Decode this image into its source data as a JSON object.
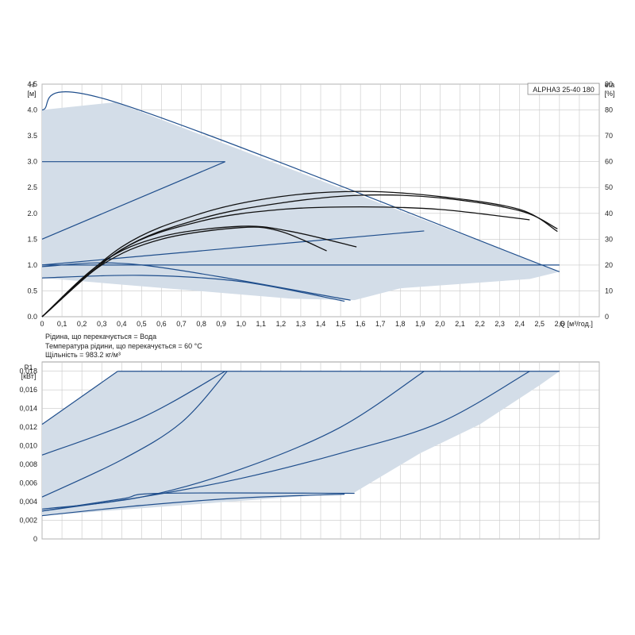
{
  "chart_data": [
    {
      "type": "line",
      "panel": "head",
      "model_label": "ALPHA3 25-40 180",
      "ylabel_name": "H",
      "ylabel_unit": "[м]",
      "y2label_name": "eta",
      "y2label_unit": "[%]",
      "xlabel": "Q [м³/год.]",
      "xlim": [
        0,
        2.8
      ],
      "ylim": [
        0,
        4.5
      ],
      "y2lim": [
        0,
        90
      ],
      "x_ticks": [
        0,
        0.1,
        0.2,
        0.3,
        0.4,
        0.5,
        0.6,
        0.7,
        0.8,
        0.9,
        1.0,
        1.1,
        1.2,
        1.3,
        1.4,
        1.5,
        1.6,
        1.7,
        1.8,
        1.9,
        2.0,
        2.1,
        2.2,
        2.3,
        2.4,
        2.5,
        2.6
      ],
      "x_tick_labels": [
        "0",
        "0,1",
        "0,2",
        "0,3",
        "0,4",
        "0,5",
        "0,6",
        "0,7",
        "0,8",
        "0,9",
        "1,0",
        "1,1",
        "1,2",
        "1,3",
        "1,4",
        "1,5",
        "1,6",
        "1,7",
        "1,8",
        "1,9",
        "2,0",
        "2,1",
        "2,2",
        "2,3",
        "2,4",
        "2,5",
        "2,6"
      ],
      "y_ticks": [
        0,
        0.5,
        1.0,
        1.5,
        2.0,
        2.5,
        3.0,
        3.5,
        4.0,
        4.5
      ],
      "y_tick_labels": [
        "0.0",
        "0.5",
        "1.0",
        "1.5",
        "2.0",
        "2.5",
        "3.0",
        "3.5",
        "4.0",
        "4.5"
      ],
      "y2_ticks": [
        0,
        10,
        20,
        30,
        40,
        50,
        60,
        70,
        80,
        90
      ],
      "y2_tick_labels": [
        "0",
        "10",
        "20",
        "30",
        "40",
        "50",
        "60",
        "70",
        "80",
        "90"
      ],
      "grid": true,
      "colors": {
        "area": "#d3dde8",
        "curve": "#1f4e8c",
        "eta": "#111111",
        "grid": "#c8c8c8"
      },
      "operating_area": [
        [
          0,
          4.0
        ],
        [
          0.37,
          4.15
        ],
        [
          2.6,
          0.87
        ],
        [
          2.45,
          0.73
        ],
        [
          1.8,
          0.55
        ],
        [
          1.57,
          0.32
        ],
        [
          1.25,
          0.35
        ],
        [
          0,
          0.75
        ]
      ],
      "series": [
        {
          "values": [
            [
              0,
              4.0
            ],
            [
              0.37,
              4.15
            ],
            [
              2.6,
              0.87
            ]
          ]
        },
        {
          "values": [
            [
              0,
              3.0
            ],
            [
              0.92,
              3.0
            ]
          ]
        },
        {
          "values": [
            [
              0,
              1.5
            ],
            [
              0.92,
              3.0
            ]
          ]
        },
        {
          "values": [
            [
              0,
              1.0
            ],
            [
              1.92,
              1.66
            ]
          ]
        },
        {
          "values": [
            [
              0,
              1.0
            ],
            [
              2.6,
              1.0
            ]
          ]
        },
        {
          "values": [
            [
              0,
              0.75
            ],
            [
              0.5,
              0.8
            ],
            [
              1.0,
              0.68
            ],
            [
              1.52,
              0.3
            ]
          ]
        },
        {
          "values": [
            [
              0,
              0.97
            ],
            [
              0.5,
              1.0
            ],
            [
              1.55,
              0.32
            ]
          ]
        }
      ],
      "efficiency_series": [
        {
          "values": [
            [
              0,
              0
            ],
            [
              0.3,
              20
            ],
            [
              0.6,
              30
            ],
            [
              1.0,
              34.5
            ],
            [
              1.2,
              33
            ],
            [
              1.43,
              25.5
            ]
          ]
        },
        {
          "values": [
            [
              0,
              0
            ],
            [
              0.3,
              21
            ],
            [
              0.6,
              31
            ],
            [
              1.0,
              35
            ],
            [
              1.25,
              33
            ],
            [
              1.58,
              27
            ]
          ]
        },
        {
          "values": [
            [
              0,
              0
            ],
            [
              0.4,
              26
            ],
            [
              0.8,
              37
            ],
            [
              1.2,
              41.5
            ],
            [
              1.6,
              42.5
            ],
            [
              2.0,
              41.5
            ],
            [
              2.45,
              37.5
            ]
          ]
        },
        {
          "values": [
            [
              0,
              0
            ],
            [
              0.4,
              26
            ],
            [
              0.8,
              38
            ],
            [
              1.2,
              44
            ],
            [
              1.6,
              47
            ],
            [
              2.0,
              46
            ],
            [
              2.4,
              41
            ],
            [
              2.59,
              34
            ]
          ]
        },
        {
          "values": [
            [
              0,
              0
            ],
            [
              0.4,
              27
            ],
            [
              0.8,
              40
            ],
            [
              1.2,
              46.5
            ],
            [
              1.6,
              48.5
            ],
            [
              2.0,
              46.5
            ],
            [
              2.4,
              41.5
            ],
            [
              2.59,
              33
            ]
          ]
        }
      ],
      "notes": [
        "Рідина, що перекачується = Вода",
        "Температура рідини, що перекачується = 60 °C",
        "Щільність = 983.2 кг/м³"
      ]
    },
    {
      "type": "line",
      "panel": "power",
      "ylabel_name": "P1",
      "ylabel_unit": "[кВт]",
      "xlim": [
        0,
        2.8
      ],
      "ylim": [
        0,
        0.019
      ],
      "y_ticks": [
        0,
        0.002,
        0.004,
        0.006,
        0.008,
        0.01,
        0.012,
        0.014,
        0.016,
        0.018
      ],
      "y_tick_labels": [
        "0",
        "0,002",
        "0,004",
        "0,006",
        "0,008",
        "0,010",
        "0,012",
        "0,014",
        "0,016",
        "0,018"
      ],
      "grid": true,
      "colors": {
        "area": "#d3dde8",
        "curve": "#1f4e8c",
        "grid": "#c8c8c8"
      },
      "operating_area": [
        [
          0,
          0.0123
        ],
        [
          0.38,
          0.018
        ],
        [
          2.6,
          0.018
        ],
        [
          2.5,
          0.0165
        ],
        [
          2.2,
          0.0123
        ],
        [
          1.9,
          0.0092
        ],
        [
          1.57,
          0.005
        ],
        [
          0,
          0.0025
        ]
      ],
      "series": [
        {
          "values": [
            [
              0.38,
              0.018
            ],
            [
              2.6,
              0.018
            ]
          ]
        },
        {
          "values": [
            [
              0,
              0.0123
            ],
            [
              0.38,
              0.018
            ]
          ]
        },
        {
          "values": [
            [
              0,
              0.009
            ],
            [
              0.5,
              0.013
            ],
            [
              0.92,
              0.018
            ]
          ]
        },
        {
          "values": [
            [
              0,
              0.0045
            ],
            [
              0.4,
              0.0085
            ],
            [
              0.7,
              0.0125
            ],
            [
              0.93,
              0.018
            ]
          ]
        },
        {
          "values": [
            [
              0,
              0.0032
            ],
            [
              0.5,
              0.0045
            ],
            [
              1.0,
              0.0075
            ],
            [
              1.5,
              0.012
            ],
            [
              1.92,
              0.018
            ]
          ]
        },
        {
          "values": [
            [
              0,
              0.003
            ],
            [
              0.5,
              0.0045
            ],
            [
              1.0,
              0.0065
            ],
            [
              1.5,
              0.0092
            ],
            [
              2.0,
              0.0125
            ],
            [
              2.45,
              0.018
            ]
          ]
        },
        {
          "values": [
            [
              0,
              0.0025
            ],
            [
              0.5,
              0.0036
            ],
            [
              1.0,
              0.0044
            ],
            [
              1.52,
              0.0048
            ]
          ]
        },
        {
          "values": [
            [
              0,
              0.003
            ],
            [
              0.4,
              0.0043
            ],
            [
              0.6,
              0.0049
            ],
            [
              1.57,
              0.0049
            ]
          ]
        }
      ]
    }
  ]
}
